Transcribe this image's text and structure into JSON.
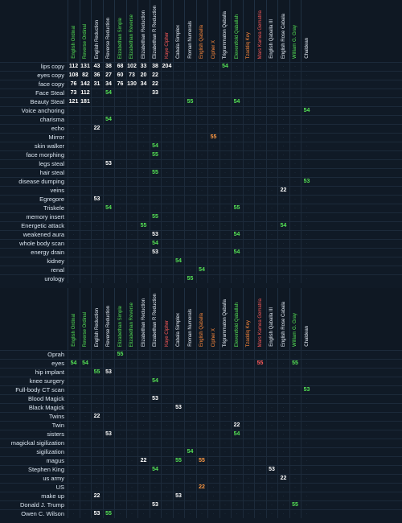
{
  "columns": [
    {
      "name": "English Ordinal",
      "color": "#55e255"
    },
    {
      "name": "Reverse Ordinal",
      "color": "#55e255"
    },
    {
      "name": "English Reduction",
      "color": "#eaf2fb"
    },
    {
      "name": "Reverse Reduction",
      "color": "#eaf2fb"
    },
    {
      "name": "Elizabethan Simple",
      "color": "#55e255"
    },
    {
      "name": "Elizabethan Reverse",
      "color": "#55e255"
    },
    {
      "name": "Elizabethan Reduction",
      "color": "#eaf2fb"
    },
    {
      "name": "Elizabethan R Reduction",
      "color": "#eaf2fb"
    },
    {
      "name": "Kaye Cipher",
      "color": "#ff5a5a"
    },
    {
      "name": "Cabala Simplex",
      "color": "#eaf2fb"
    },
    {
      "name": "Roman Numerals",
      "color": "#eaf2fb"
    },
    {
      "name": "English Qaballa",
      "color": "#ff8a3c"
    },
    {
      "name": "Cipher X",
      "color": "#ff8a3c"
    },
    {
      "name": "Trigrammaton Qaballa",
      "color": "#eaf2fb"
    },
    {
      "name": "Eleventfold Qaballah",
      "color": "#55e255"
    },
    {
      "name": "Tzaddiq Key",
      "color": "#ff8a3c"
    },
    {
      "name": "Mars Kamea Gematria",
      "color": "#ff5a5a"
    },
    {
      "name": "English Qaballa III",
      "color": "#eaf2fb"
    },
    {
      "name": "English Rose Cabala",
      "color": "#eaf2fb"
    },
    {
      "name": "William G. Gray",
      "color": "#55e255"
    },
    {
      "name": "Chaldean",
      "color": "#eaf2fb"
    }
  ],
  "highlight_colors": {
    "green": "#55e255",
    "white": "#ffffff",
    "orange": "#ff9a44",
    "red": "#ff5a5a",
    "dim": "#2f4256"
  },
  "section1": [
    {
      "label": "lips copy",
      "cells": [
        "112",
        "131",
        "43",
        "38",
        "68",
        "102",
        "33",
        "38",
        "204",
        "",
        "",
        "",
        "",
        "54",
        "",
        "",
        "",
        "",
        "",
        "",
        ""
      ]
    },
    {
      "label": "eyes copy",
      "cells": [
        "108",
        "82",
        "36",
        "27",
        "60",
        "73",
        "20",
        "22",
        "",
        "",
        "",
        "",
        "",
        "",
        "",
        "",
        "",
        "",
        "",
        "",
        ""
      ]
    },
    {
      "label": "face copy",
      "cells": [
        "76",
        "142",
        "31",
        "34",
        "76",
        "130",
        "34",
        "22",
        "",
        "",
        "",
        "",
        "",
        "",
        "",
        "",
        "",
        "",
        "",
        "",
        ""
      ]
    },
    {
      "label": "Face Steal",
      "cells": [
        "73",
        "112",
        "",
        "54",
        "",
        "",
        "",
        "33",
        "",
        "",
        "",
        "",
        "",
        "",
        "",
        "",
        "",
        "",
        "",
        "",
        ""
      ]
    },
    {
      "label": "Beauty Steal",
      "cells": [
        "121",
        "181",
        "",
        "",
        "",
        "",
        "",
        "",
        "",
        "",
        "55",
        "",
        "",
        "",
        "54",
        "",
        "",
        "",
        "",
        "",
        ""
      ]
    },
    {
      "label": "Voice anchoring",
      "cells": [
        "",
        "",
        "",
        "",
        "",
        "",
        "",
        "",
        "",
        "",
        "",
        "",
        "",
        "",
        "",
        "",
        "",
        "",
        "",
        "",
        "54"
      ]
    },
    {
      "label": "charisma",
      "cells": [
        "",
        "",
        "",
        "54",
        "",
        "",
        "",
        "",
        "",
        "",
        "",
        "",
        "",
        "",
        "",
        "",
        "",
        "",
        "",
        "",
        ""
      ]
    },
    {
      "label": "echo",
      "cells": [
        "",
        "",
        "22",
        "",
        "",
        "",
        "",
        "",
        "",
        "",
        "",
        "",
        "",
        "",
        "",
        "",
        "",
        "",
        "",
        "",
        ""
      ]
    },
    {
      "label": "Mirror",
      "cells": [
        "",
        "",
        "",
        "",
        "",
        "",
        "",
        "",
        "",
        "",
        "",
        "",
        "55",
        "",
        "",
        "",
        "",
        "",
        "",
        "",
        ""
      ]
    },
    {
      "label": "skin walker",
      "cells": [
        "",
        "",
        "",
        "",
        "",
        "",
        "",
        "54",
        "",
        "",
        "",
        "",
        "",
        "",
        "",
        "",
        "",
        "",
        "",
        "",
        ""
      ]
    },
    {
      "label": "face morphing",
      "cells": [
        "",
        "",
        "",
        "",
        "",
        "",
        "",
        "55",
        "",
        "",
        "",
        "",
        "",
        "",
        "",
        "",
        "",
        "",
        "",
        "",
        ""
      ]
    },
    {
      "label": "legs steal",
      "cells": [
        "",
        "",
        "",
        "53",
        "",
        "",
        "",
        "",
        "",
        "",
        "",
        "",
        "",
        "",
        "",
        "",
        "",
        "",
        "",
        "",
        ""
      ]
    },
    {
      "label": "hair steal",
      "cells": [
        "",
        "",
        "",
        "",
        "",
        "",
        "",
        "55",
        "",
        "",
        "",
        "",
        "",
        "",
        "",
        "",
        "",
        "",
        "",
        "",
        ""
      ]
    },
    {
      "label": "disease dumping",
      "cells": [
        "",
        "",
        "",
        "",
        "",
        "",
        "",
        "",
        "",
        "",
        "",
        "",
        "",
        "",
        "",
        "",
        "",
        "",
        "",
        "",
        "53"
      ]
    },
    {
      "label": "veins",
      "cells": [
        "",
        "",
        "",
        "",
        "",
        "",
        "",
        "",
        "",
        "",
        "",
        "",
        "",
        "",
        "",
        "",
        "",
        "",
        "22",
        "",
        ""
      ]
    },
    {
      "label": "Egregore",
      "cells": [
        "",
        "",
        "53",
        "",
        "",
        "",
        "",
        "",
        "",
        "",
        "",
        "",
        "",
        "",
        "",
        "",
        "",
        "",
        "",
        "",
        ""
      ]
    },
    {
      "label": "Triskele",
      "cells": [
        "",
        "",
        "",
        "54",
        "",
        "",
        "",
        "",
        "",
        "",
        "",
        "",
        "",
        "",
        "55",
        "",
        "",
        "",
        "",
        "",
        ""
      ]
    },
    {
      "label": "memory insert",
      "cells": [
        "",
        "",
        "",
        "",
        "",
        "",
        "",
        "55",
        "",
        "",
        "",
        "",
        "",
        "",
        "",
        "",
        "",
        "",
        "",
        "",
        ""
      ]
    },
    {
      "label": "Energetic attack",
      "cells": [
        "",
        "",
        "",
        "",
        "",
        "",
        "55",
        "",
        "",
        "",
        "",
        "",
        "",
        "",
        "",
        "",
        "",
        "",
        "54",
        "",
        ""
      ]
    },
    {
      "label": "weakened aura",
      "cells": [
        "",
        "",
        "",
        "",
        "",
        "",
        "",
        "53",
        "",
        "",
        "",
        "",
        "",
        "",
        "54",
        "",
        "",
        "",
        "",
        "",
        ""
      ]
    },
    {
      "label": "whole body scan",
      "cells": [
        "",
        "",
        "",
        "",
        "",
        "",
        "",
        "54",
        "",
        "",
        "",
        "",
        "",
        "",
        "",
        "",
        "",
        "",
        "",
        "",
        ""
      ]
    },
    {
      "label": "energy drain",
      "cells": [
        "",
        "",
        "",
        "",
        "",
        "",
        "",
        "53",
        "",
        "",
        "",
        "",
        "",
        "",
        "54",
        "",
        "",
        "",
        "",
        "",
        ""
      ]
    },
    {
      "label": "kidney",
      "cells": [
        "",
        "",
        "",
        "",
        "",
        "",
        "",
        "",
        "",
        "54",
        "",
        "",
        "",
        "",
        "",
        "",
        "",
        "",
        "",
        "",
        ""
      ]
    },
    {
      "label": "renal",
      "cells": [
        "",
        "",
        "",
        "",
        "",
        "",
        "",
        "",
        "",
        "",
        "",
        "54",
        "",
        "",
        "",
        "",
        "",
        "",
        "",
        "",
        ""
      ]
    },
    {
      "label": "urology",
      "cells": [
        "",
        "",
        "",
        "",
        "",
        "",
        "",
        "",
        "",
        "",
        "55",
        "",
        "",
        "",
        "",
        "",
        "",
        "",
        "",
        "",
        ""
      ]
    }
  ],
  "section2": [
    {
      "label": "Oprah",
      "cells": [
        "",
        "",
        "",
        "",
        "55",
        "",
        "",
        "",
        "",
        "",
        "",
        "",
        "",
        "",
        "",
        "",
        "",
        "",
        "",
        "",
        ""
      ]
    },
    {
      "label": "eyes",
      "cells": [
        "54",
        "54",
        "",
        "",
        "",
        "",
        "",
        "",
        "",
        "",
        "",
        "",
        "",
        "",
        "",
        "",
        "55",
        "",
        "",
        "55",
        ""
      ]
    },
    {
      "label": "hip implant",
      "cells": [
        "",
        "",
        "55",
        "53",
        "",
        "",
        "",
        "",
        "",
        "",
        "",
        "",
        "",
        "",
        "",
        "",
        "",
        "",
        "",
        "",
        ""
      ]
    },
    {
      "label": "knee surgery",
      "cells": [
        "",
        "",
        "",
        "",
        "",
        "",
        "",
        "54",
        "",
        "",
        "",
        "",
        "",
        "",
        "",
        "",
        "",
        "",
        "",
        "",
        ""
      ]
    },
    {
      "label": "Full-body CT scan",
      "cells": [
        "",
        "",
        "",
        "",
        "",
        "",
        "",
        "",
        "",
        "",
        "",
        "",
        "",
        "",
        "",
        "",
        "",
        "",
        "",
        "",
        "53"
      ]
    },
    {
      "label": "Blood Magick",
      "cells": [
        "",
        "",
        "",
        "",
        "",
        "",
        "",
        "53",
        "",
        "",
        "",
        "",
        "",
        "",
        "",
        "",
        "",
        "",
        "",
        "",
        ""
      ]
    },
    {
      "label": "Black Magick",
      "cells": [
        "",
        "",
        "",
        "",
        "",
        "",
        "",
        "",
        "",
        "53",
        "",
        "",
        "",
        "",
        "",
        "",
        "",
        "",
        "",
        "",
        ""
      ]
    },
    {
      "label": "Twins",
      "cells": [
        "",
        "",
        "22",
        "",
        "",
        "",
        "",
        "",
        "",
        "",
        "",
        "",
        "",
        "",
        "",
        "",
        "",
        "",
        "",
        "",
        ""
      ]
    },
    {
      "label": "Twin",
      "cells": [
        "",
        "",
        "",
        "",
        "",
        "",
        "",
        "",
        "",
        "",
        "",
        "",
        "",
        "",
        "22",
        "",
        "",
        "",
        "",
        "",
        ""
      ]
    },
    {
      "label": "sisters",
      "cells": [
        "",
        "",
        "",
        "53",
        "",
        "",
        "",
        "",
        "",
        "",
        "",
        "",
        "",
        "",
        "54",
        "",
        "",
        "",
        "",
        "",
        ""
      ]
    },
    {
      "label": "magickal sigilization",
      "cells": [
        "",
        "",
        "",
        "",
        "",
        "",
        "",
        "",
        "",
        "",
        "",
        "",
        "",
        "",
        "",
        "",
        "",
        "",
        "",
        "",
        ""
      ]
    },
    {
      "label": "sigilization",
      "cells": [
        "",
        "",
        "",
        "",
        "",
        "",
        "",
        "",
        "",
        "",
        "54",
        "",
        "",
        "",
        "",
        "",
        "",
        "",
        "",
        "",
        ""
      ]
    },
    {
      "label": "magus",
      "cells": [
        "",
        "",
        "",
        "",
        "",
        "",
        "22",
        "",
        "",
        "55",
        "",
        "55",
        "",
        "",
        "",
        "",
        "",
        "",
        "",
        "",
        ""
      ]
    },
    {
      "label": "Stephen King",
      "cells": [
        "",
        "",
        "",
        "",
        "",
        "",
        "",
        "54",
        "",
        "",
        "",
        "",
        "",
        "",
        "",
        "",
        "",
        "53",
        "",
        "",
        ""
      ]
    },
    {
      "label": "us army",
      "cells": [
        "",
        "",
        "",
        "",
        "",
        "",
        "",
        "",
        "",
        "",
        "",
        "",
        "",
        "",
        "",
        "",
        "",
        "",
        "22",
        "",
        ""
      ]
    },
    {
      "label": "US",
      "cells": [
        "",
        "",
        "",
        "",
        "",
        "",
        "",
        "",
        "",
        "",
        "",
        "22",
        "",
        "",
        "",
        "",
        "",
        "",
        "",
        "",
        ""
      ]
    },
    {
      "label": "make up",
      "cells": [
        "",
        "",
        "22",
        "",
        "",
        "",
        "",
        "",
        "",
        "53",
        "",
        "",
        "",
        "",
        "",
        "",
        "",
        "",
        "",
        "",
        ""
      ]
    },
    {
      "label": "Donald J. Trump",
      "cells": [
        "",
        "",
        "",
        "",
        "",
        "",
        "",
        "53",
        "",
        "",
        "",
        "",
        "",
        "",
        "",
        "",
        "",
        "",
        "",
        "55",
        ""
      ]
    },
    {
      "label": "Owen C. Wilson",
      "cells": [
        "",
        "",
        "53",
        "55",
        "",
        "",
        "",
        "",
        "",
        "",
        "",
        "",
        "",
        "",
        "",
        "",
        "",
        "",
        "",
        "",
        ""
      ]
    }
  ]
}
